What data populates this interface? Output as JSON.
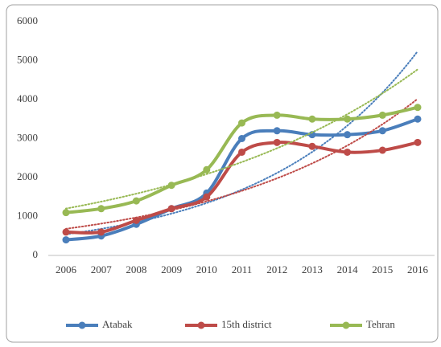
{
  "chart_data": {
    "type": "line",
    "categories": [
      "2006",
      "2007",
      "2008",
      "2009",
      "2010",
      "2011",
      "2012",
      "2013",
      "2014",
      "2015",
      "2016"
    ],
    "series": [
      {
        "name": "Atabak",
        "color": "#4a7ebb",
        "values": [
          400,
          500,
          800,
          1200,
          1600,
          3000,
          3200,
          3100,
          3100,
          3200,
          3500
        ]
      },
      {
        "name": "15th district",
        "color": "#be4b48",
        "values": [
          600,
          600,
          900,
          1200,
          1500,
          2650,
          2900,
          2800,
          2650,
          2700,
          2900
        ]
      },
      {
        "name": "Tehran",
        "color": "#98b954",
        "values": [
          1100,
          1200,
          1400,
          1800,
          2200,
          3400,
          3600,
          3500,
          3500,
          3600,
          3800
        ]
      }
    ],
    "ylim": [
      0,
      6000
    ],
    "yticks": [
      0,
      1000,
      2000,
      3000,
      4000,
      5000,
      6000
    ],
    "smooth": true,
    "trendline": "exponential",
    "legend": "bottom",
    "grid": false
  }
}
